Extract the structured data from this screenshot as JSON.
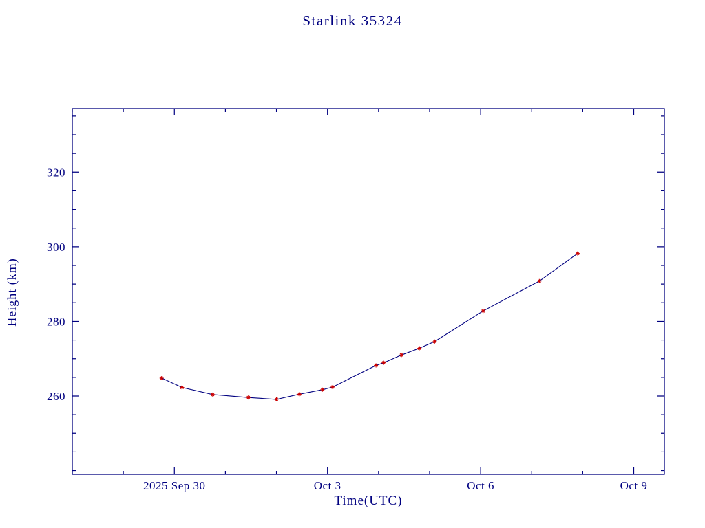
{
  "chart_data": {
    "type": "line",
    "title": "Starlink 35324",
    "xlabel": "Time(UTC)",
    "ylabel": "Height (km)",
    "x_unit": "days since 2025 Sep 30 00:00 UTC",
    "xlim": [
      -2.0,
      9.6
    ],
    "ylim": [
      239,
      337
    ],
    "grid": false,
    "legend": "none",
    "x_major_ticks": [
      {
        "value": 0,
        "label": "2025 Sep 30"
      },
      {
        "value": 3,
        "label": "Oct 3"
      },
      {
        "value": 6,
        "label": "Oct 6"
      },
      {
        "value": 9,
        "label": "Oct 9"
      }
    ],
    "x_minor_step": 1,
    "y_major_ticks": [
      {
        "value": 260,
        "label": "260"
      },
      {
        "value": 280,
        "label": "280"
      },
      {
        "value": 300,
        "label": "300"
      },
      {
        "value": 320,
        "label": "320"
      }
    ],
    "y_minor_step": 5,
    "colors": {
      "axis": "#000080",
      "text": "#000080",
      "line": "#000080",
      "marker": "#cc0000"
    },
    "series": [
      {
        "name": "height_km",
        "marker": "asterisk",
        "line_color": "#000080",
        "marker_color": "#cc0000",
        "points": [
          [
            -0.25,
            264.8
          ],
          [
            0.15,
            262.3
          ],
          [
            0.75,
            260.4
          ],
          [
            1.45,
            259.6
          ],
          [
            2.0,
            259.1
          ],
          [
            2.45,
            260.5
          ],
          [
            2.9,
            261.7
          ],
          [
            3.1,
            262.4
          ],
          [
            3.95,
            268.2
          ],
          [
            4.1,
            268.9
          ],
          [
            4.45,
            271.0
          ],
          [
            4.8,
            272.8
          ],
          [
            5.1,
            274.6
          ],
          [
            6.05,
            282.8
          ],
          [
            7.15,
            290.8
          ],
          [
            7.9,
            298.2
          ]
        ]
      }
    ]
  }
}
